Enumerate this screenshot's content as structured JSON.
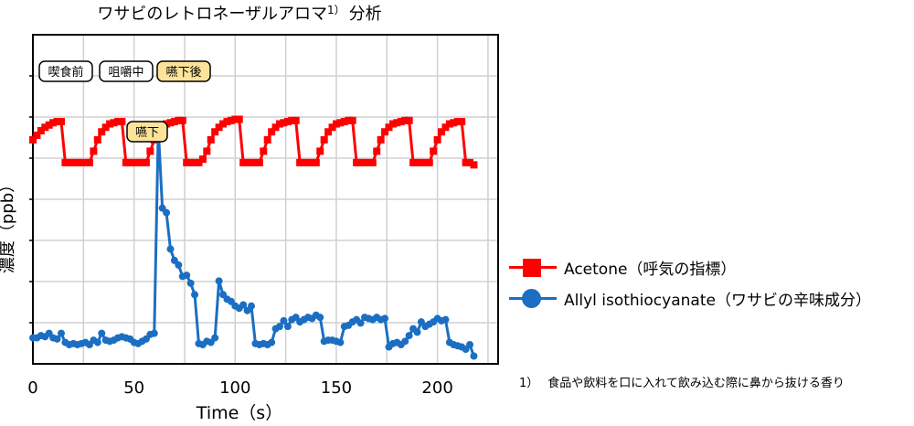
{
  "chart_data": {
    "type": "line",
    "title": "ワサビのレトロネーザルアロマ",
    "title_superscript": "1）",
    "title_suffix": "分析",
    "xlabel": "Time（s）",
    "ylabel": "濃度（ppb）",
    "xlim": [
      0,
      230
    ],
    "xticks": [
      0,
      50,
      100,
      150,
      200
    ],
    "ylim": [
      0,
      10
    ],
    "grid": true,
    "series": [
      {
        "name": "Acetone（呼気の指標）",
        "color": "#ff0000",
        "marker": "square",
        "x": [
          0,
          2,
          4,
          6,
          8,
          10,
          12,
          14,
          16,
          18,
          20,
          22,
          24,
          26,
          28,
          30,
          32,
          34,
          36,
          38,
          40,
          42,
          44,
          46,
          48,
          50,
          52,
          54,
          56,
          58,
          60,
          62,
          64,
          66,
          68,
          70,
          72,
          74,
          76,
          78,
          80,
          82,
          84,
          86,
          88,
          90,
          92,
          94,
          96,
          98,
          100,
          102,
          104,
          106,
          108,
          110,
          112,
          114,
          116,
          118,
          120,
          122,
          124,
          126,
          128,
          130,
          132,
          134,
          136,
          138,
          140,
          142,
          144,
          146,
          148,
          150,
          152,
          154,
          156,
          158,
          160,
          162,
          164,
          166,
          168,
          170,
          172,
          174,
          176,
          178,
          180,
          182,
          184,
          186,
          188,
          190,
          192,
          194,
          196,
          198,
          200,
          202,
          204,
          206,
          208,
          210,
          212,
          214,
          216,
          218
        ],
        "y": [
          9.6,
          9.8,
          10.0,
          10.15,
          10.25,
          10.35,
          10.4,
          10.4,
          8.6,
          8.6,
          8.6,
          8.6,
          8.6,
          8.6,
          8.6,
          9.1,
          9.6,
          9.95,
          10.15,
          10.3,
          10.35,
          10.4,
          10.4,
          8.6,
          8.6,
          8.6,
          8.6,
          8.6,
          8.6,
          9.1,
          9.6,
          9.95,
          10.15,
          10.3,
          10.35,
          10.4,
          10.45,
          10.45,
          8.6,
          8.6,
          8.6,
          8.6,
          8.75,
          9.1,
          9.6,
          9.95,
          10.15,
          10.3,
          10.4,
          10.45,
          10.5,
          10.5,
          8.6,
          8.6,
          8.6,
          8.6,
          8.6,
          9.1,
          9.6,
          9.95,
          10.15,
          10.3,
          10.35,
          10.4,
          10.45,
          10.45,
          8.6,
          8.6,
          8.6,
          8.6,
          8.6,
          9.1,
          9.6,
          9.95,
          10.15,
          10.3,
          10.35,
          10.4,
          10.45,
          10.45,
          8.6,
          8.6,
          8.6,
          8.6,
          8.6,
          9.1,
          9.6,
          9.95,
          10.15,
          10.3,
          10.35,
          10.4,
          10.45,
          10.45,
          8.6,
          8.6,
          8.6,
          8.6,
          8.6,
          9.1,
          9.6,
          9.95,
          10.15,
          10.3,
          10.35,
          10.4,
          10.4,
          8.6,
          8.6,
          8.5
        ]
      },
      {
        "name": "Allyl isothiocyanate（ワサビの辛味成分）",
        "color": "#1b6ec2",
        "marker": "circle",
        "x": [
          0,
          2,
          4,
          6,
          8,
          10,
          12,
          14,
          16,
          18,
          20,
          22,
          24,
          26,
          28,
          30,
          32,
          34,
          36,
          38,
          40,
          42,
          44,
          46,
          48,
          50,
          52,
          54,
          56,
          58,
          60,
          62,
          64,
          66,
          68,
          70,
          72,
          74,
          76,
          78,
          80,
          82,
          84,
          86,
          88,
          90,
          92,
          94,
          96,
          98,
          100,
          102,
          104,
          106,
          108,
          110,
          112,
          114,
          116,
          118,
          120,
          122,
          124,
          126,
          128,
          130,
          132,
          134,
          136,
          138,
          140,
          142,
          144,
          146,
          148,
          150,
          152,
          154,
          156,
          158,
          160,
          162,
          164,
          166,
          168,
          170,
          172,
          174,
          176,
          178,
          180,
          182,
          184,
          186,
          188,
          190,
          192,
          194,
          196,
          198,
          200,
          202,
          204,
          206,
          208,
          210,
          212,
          214,
          216,
          218
        ],
        "y": [
          0.9,
          0.9,
          1.0,
          0.95,
          1.1,
          0.9,
          0.85,
          1.1,
          0.7,
          0.6,
          0.65,
          0.6,
          0.65,
          0.7,
          0.6,
          0.8,
          0.7,
          1.1,
          0.8,
          0.75,
          0.8,
          0.9,
          0.95,
          0.9,
          0.85,
          0.7,
          0.65,
          0.75,
          0.85,
          1.05,
          1.1,
          10.1,
          6.6,
          6.4,
          4.8,
          4.3,
          4.1,
          3.6,
          3.65,
          3.3,
          2.8,
          0.65,
          0.6,
          0.75,
          0.7,
          0.9,
          3.4,
          2.8,
          2.6,
          2.5,
          2.3,
          2.2,
          2.35,
          2.1,
          2.3,
          0.65,
          0.6,
          0.65,
          0.6,
          0.7,
          1.3,
          1.4,
          1.65,
          1.4,
          1.7,
          1.8,
          1.6,
          1.7,
          1.8,
          1.75,
          1.9,
          1.8,
          0.75,
          0.8,
          0.8,
          0.75,
          0.7,
          1.4,
          1.45,
          1.6,
          1.7,
          1.55,
          1.8,
          1.75,
          1.7,
          1.8,
          1.7,
          1.75,
          0.5,
          0.65,
          0.7,
          0.6,
          0.75,
          1.0,
          1.3,
          1.15,
          1.6,
          1.4,
          1.5,
          1.6,
          1.75,
          1.65,
          1.7,
          0.7,
          0.6,
          0.55,
          0.5,
          0.4,
          0.6,
          0.1
        ]
      }
    ],
    "annotations": [
      {
        "text": "喫食前",
        "x": 8,
        "y": 13.2,
        "highlight": false
      },
      {
        "text": "咀嚼中",
        "x": 40,
        "y": 13.2,
        "highlight": false
      },
      {
        "text": "嚥下後",
        "x": 72,
        "y": 13.2,
        "highlight": true
      },
      {
        "text": "嚥下",
        "x": 56,
        "y": 11.1,
        "highlight": true
      }
    ]
  },
  "legend": [
    {
      "label": "Acetone（呼気の指標）",
      "color": "#ff0000",
      "marker": "square"
    },
    {
      "label": "Allyl isothiocyanate（ワサビの辛味成分）",
      "color": "#1b6ec2",
      "marker": "circle"
    }
  ],
  "footnote": {
    "number": "1）",
    "text": "食品や飲料を口に入れて飲み込む際に鼻から抜ける香り"
  }
}
